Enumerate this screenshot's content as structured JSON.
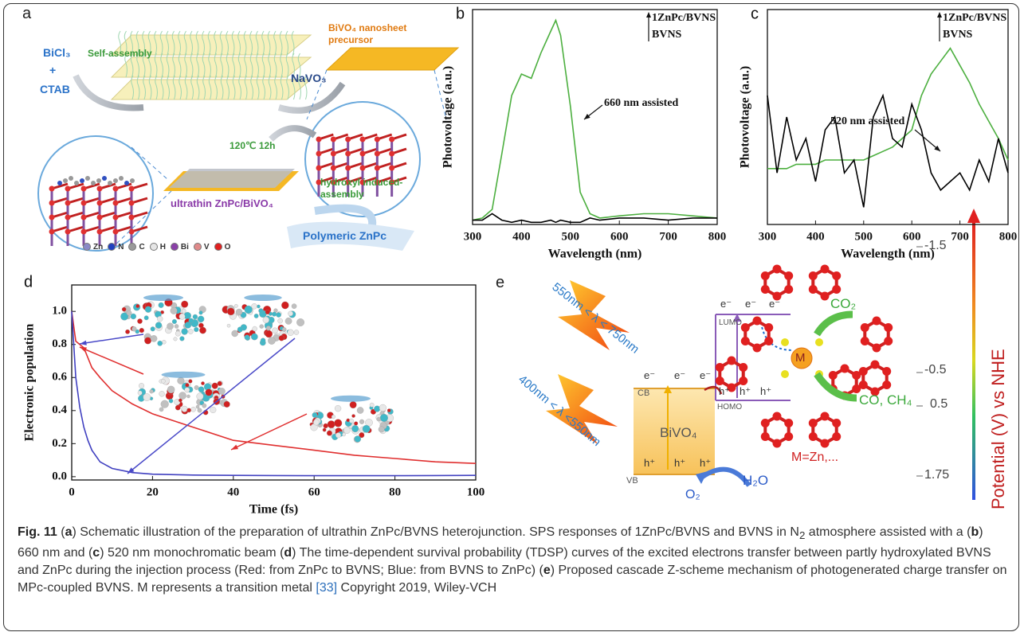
{
  "panel_a": {
    "label": "a",
    "bicl3": "BiCl₃",
    "plus": "+",
    "ctab": "CTAB",
    "self_assembly": "Self-assembly",
    "navo3": "NaVO₃",
    "precursor": "BiVO₄ nanosheet precursor",
    "condition": "120℃ 12h",
    "product": "ultrathin ZnPc/BiVO₄",
    "hydroxyl": "hydroxyl induced-assembly",
    "polymeric": "Polymeric ZnPc",
    "legend": [
      "Zn",
      "N",
      "C",
      "H",
      "Bi",
      "V",
      "O"
    ]
  },
  "chart_data": [
    {
      "type": "line",
      "panel": "b",
      "ylabel": "Photovoltage (a.u.)",
      "xlabel": "Wavelength (nm)",
      "annotation": "660 nm assisted",
      "x": [
        300,
        320,
        340,
        360,
        380,
        400,
        420,
        440,
        460,
        470,
        480,
        500,
        520,
        540,
        560,
        600,
        650,
        700,
        750,
        800
      ],
      "xlim": [
        300,
        800
      ],
      "xticks": [
        300,
        400,
        500,
        600,
        700,
        800
      ],
      "ylim": [
        0,
        1
      ],
      "series": [
        {
          "name": "1ZnPc/BVNS",
          "color": "#4caf3f",
          "values": [
            0.02,
            0.03,
            0.07,
            0.33,
            0.6,
            0.7,
            0.68,
            0.8,
            0.9,
            0.95,
            0.88,
            0.55,
            0.15,
            0.05,
            0.03,
            0.04,
            0.05,
            0.05,
            0.04,
            0.03
          ]
        },
        {
          "name": "BVNS",
          "color": "#000000",
          "values": [
            0.02,
            0.02,
            0.05,
            0.02,
            0.01,
            0.02,
            0.01,
            0.01,
            0.02,
            0.01,
            0.02,
            0.01,
            0.01,
            0.03,
            0.02,
            0.03,
            0.03,
            0.02,
            0.03,
            0.03
          ]
        }
      ]
    },
    {
      "type": "line",
      "panel": "c",
      "ylabel": "Photovoltage (a.u.)",
      "xlabel": "Wavelength (nm)",
      "annotation": "520 nm assisted",
      "x": [
        300,
        320,
        340,
        360,
        380,
        400,
        420,
        440,
        460,
        480,
        500,
        520,
        540,
        560,
        580,
        600,
        620,
        640,
        660,
        680,
        700,
        720,
        740,
        760,
        780,
        800
      ],
      "xlim": [
        300,
        800
      ],
      "xticks": [
        300,
        400,
        500,
        600,
        700,
        800
      ],
      "ylim": [
        0,
        0.5
      ],
      "series": [
        {
          "name": "1ZnPc/BVNS",
          "color": "#4caf3f",
          "values": [
            0.13,
            0.13,
            0.13,
            0.14,
            0.14,
            0.14,
            0.15,
            0.15,
            0.15,
            0.15,
            0.15,
            0.16,
            0.17,
            0.18,
            0.2,
            0.22,
            0.3,
            0.35,
            0.38,
            0.41,
            0.37,
            0.33,
            0.28,
            0.24,
            0.2,
            0.15
          ]
        },
        {
          "name": "BVNS",
          "color": "#000000",
          "values": [
            0.3,
            0.12,
            0.25,
            0.15,
            0.2,
            0.1,
            0.22,
            0.25,
            0.12,
            0.15,
            0.04,
            0.25,
            0.3,
            0.2,
            0.18,
            0.28,
            0.22,
            0.12,
            0.08,
            0.1,
            0.12,
            0.08,
            0.15,
            0.1,
            0.2,
            0.12
          ]
        }
      ]
    },
    {
      "type": "line",
      "panel": "d",
      "ylabel": "Electronic population",
      "xlabel": "Time (fs)",
      "x": [
        0,
        1,
        2,
        3,
        4,
        5,
        7,
        10,
        15,
        20,
        30,
        40,
        50,
        60,
        70,
        80,
        90,
        100
      ],
      "xlim": [
        0,
        100
      ],
      "xticks": [
        0,
        20,
        40,
        60,
        80,
        100
      ],
      "ylim": [
        -0.02,
        1.16
      ],
      "yticks": [
        {
          "value": 0,
          "label": "0.0"
        },
        {
          "value": 0.2,
          "label": "0.2"
        },
        {
          "value": 0.4,
          "label": "0.4"
        },
        {
          "value": 0.6,
          "label": "0.6"
        },
        {
          "value": 0.8,
          "label": "0.8"
        },
        {
          "value": 1,
          "label": "1.0"
        }
      ],
      "series": [
        {
          "color": "#e03030",
          "values": [
            1.0,
            0.82,
            0.8,
            0.78,
            0.72,
            0.66,
            0.6,
            0.52,
            0.44,
            0.38,
            0.3,
            0.22,
            0.19,
            0.16,
            0.13,
            0.11,
            0.09,
            0.08
          ]
        },
        {
          "color": "#4040c0",
          "values": [
            1.0,
            0.6,
            0.42,
            0.3,
            0.22,
            0.16,
            0.09,
            0.05,
            0.025,
            0.015,
            0.01,
            0.008,
            0.007,
            0.006,
            0.006,
            0.006,
            0.007,
            0.008
          ]
        }
      ]
    }
  ],
  "panel_e": {
    "label": "e",
    "light_long": "550nm < λ < 750nm",
    "light_short": "400nm < λ <550nm",
    "lumo": "LUMO",
    "homo": "HOMO",
    "cb": "CB",
    "vb": "VB",
    "bivo4": "BiVO₄",
    "electron": "e⁻",
    "hole": "h⁺",
    "metal": "M",
    "co2": "CO₂",
    "products": "CO, CH₄",
    "metal_note": "M=Zn,...",
    "h2o": "H₂O",
    "o2": "O₂",
    "scale": [
      "-1.5",
      "-0.5",
      "0.5",
      "1.75"
    ],
    "scale_title": "Potential (V) vs NHE"
  },
  "caption": {
    "segments": [
      "Fig. 11",
      " (",
      "a",
      ") Schematic illustration of the preparation of ultrathin ZnPc/BVNS heterojunction. SPS responses of 1ZnPc/BVNS and BVNS in N",
      "2",
      " atmosphere assisted with a (",
      "b",
      ") 660 nm and (",
      "c",
      ") 520 nm monochromatic beam (",
      "d",
      ") The time-dependent survival probability (TDSP) curves of the excited electrons transfer between partly hydroxylated BVNS and ZnPc during the injection process (Red: from ZnPc to BVNS; Blue: from BVNS to ZnPc) (",
      "e",
      ") Proposed cascade Z-scheme mechanism of photogenerated charge transfer on MPc-coupled BVNS. M represents a transition metal ",
      "[33]",
      " Copyright 2019, Wiley-VCH"
    ]
  }
}
